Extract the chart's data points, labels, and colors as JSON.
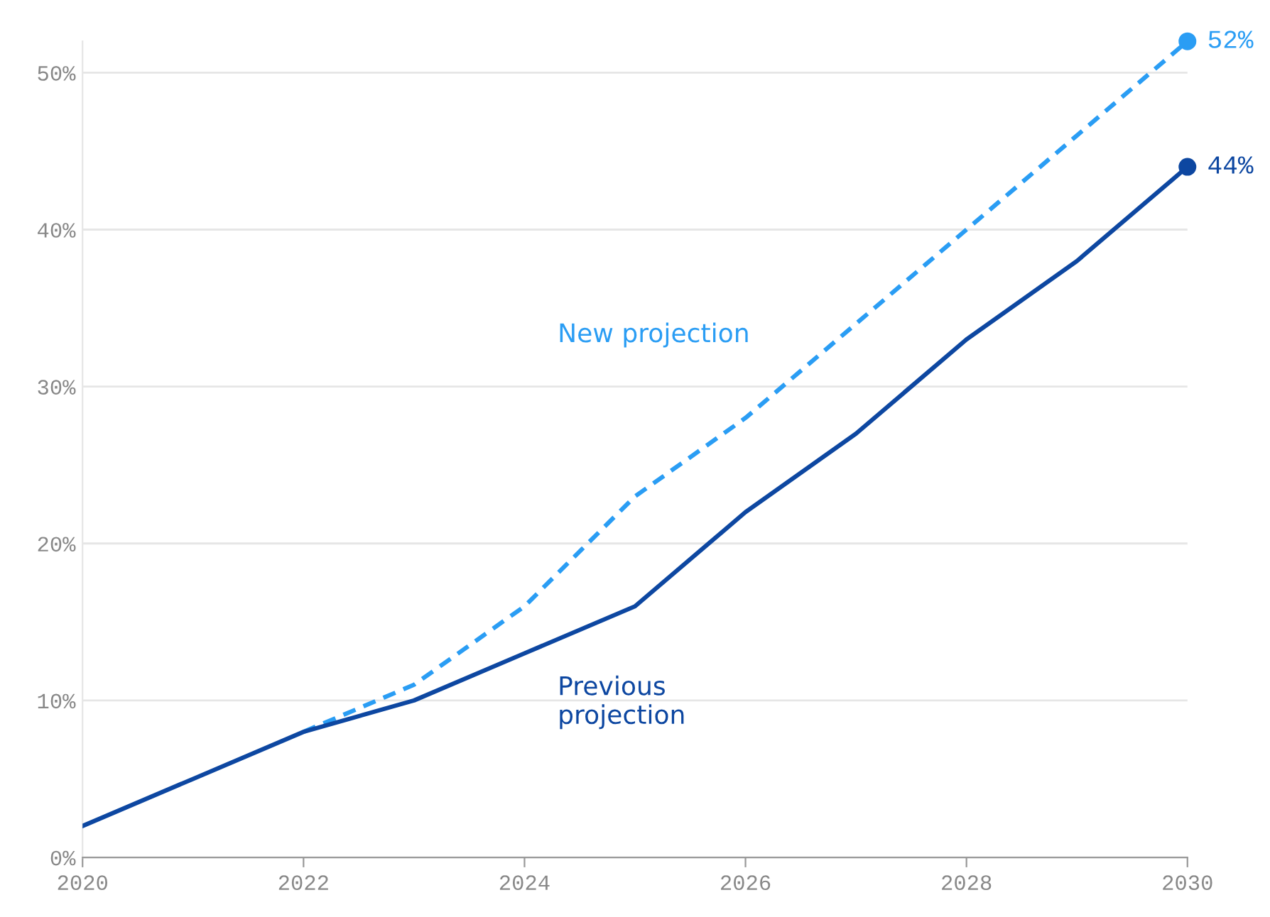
{
  "chart_data": {
    "type": "line",
    "x": [
      2020,
      2021,
      2022,
      2023,
      2024,
      2025,
      2026,
      2027,
      2028,
      2029,
      2030
    ],
    "series": [
      {
        "name": "New projection",
        "color": "#2a9df4",
        "line_style": "dashed",
        "values": [
          null,
          null,
          8,
          11,
          16,
          23,
          28,
          34,
          40,
          46,
          52
        ],
        "value_labels": [
          null,
          null,
          null,
          null,
          null,
          null,
          null,
          null,
          null,
          null,
          "52%"
        ]
      },
      {
        "name": "Previous\nprojection",
        "color": "#0d47a1",
        "line_style": "solid",
        "values": [
          2,
          5,
          8,
          10,
          13,
          16,
          22,
          27,
          33,
          38,
          44
        ],
        "value_labels": [
          null,
          null,
          null,
          null,
          null,
          null,
          null,
          null,
          null,
          null,
          "44%"
        ]
      }
    ],
    "xlim": [
      2020,
      2030
    ],
    "xticks": [
      2020,
      2022,
      2024,
      2026,
      2028,
      2030
    ],
    "ylim": [
      0,
      52
    ],
    "yticks": [
      {
        "value": 0,
        "label": "0%"
      },
      {
        "value": 10,
        "label": "10%"
      },
      {
        "value": 20,
        "label": "20%"
      },
      {
        "value": 30,
        "label": "30%"
      },
      {
        "value": 40,
        "label": "40%"
      },
      {
        "value": 50,
        "label": "50%"
      }
    ],
    "grid": "y",
    "legend": false,
    "marker": "none"
  }
}
